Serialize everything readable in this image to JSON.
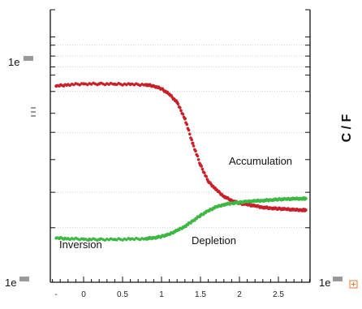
{
  "chart_data": {
    "type": "scatter",
    "title": "",
    "xlabel": "",
    "ylabel": "C / F",
    "x_ticks": [
      "-",
      "0",
      "0.5",
      "1",
      "1.5",
      "2",
      "2.5"
    ],
    "y_tick_labels": {
      "left_top": "1e",
      "left_bottom": "1e",
      "right_bottom": "1e"
    },
    "xlim": [
      -0.4,
      3.0
    ],
    "log_y": true,
    "grid": true,
    "annotations": [
      "Inversion",
      "Depletion",
      "Accumulation"
    ],
    "colors": {
      "red_series": "#c8202a",
      "green_series": "#3cb843"
    },
    "series": [
      {
        "color": "#c8202a",
        "x": [
          -0.35,
          -0.2,
          0.0,
          0.2,
          0.4,
          0.6,
          0.8,
          0.9,
          1.0,
          1.1,
          1.2,
          1.3,
          1.4,
          1.5,
          1.6,
          1.7,
          1.8,
          1.9,
          2.0,
          2.1,
          2.2,
          2.3,
          2.4,
          2.5,
          2.6,
          2.7,
          2.8,
          2.85
        ],
        "y": [
          0.72,
          0.725,
          0.728,
          0.728,
          0.727,
          0.726,
          0.725,
          0.72,
          0.71,
          0.69,
          0.66,
          0.6,
          0.51,
          0.43,
          0.37,
          0.34,
          0.315,
          0.3,
          0.29,
          0.285,
          0.28,
          0.275,
          0.272,
          0.27,
          0.268,
          0.266,
          0.265,
          0.265
        ]
      },
      {
        "color": "#3cb843",
        "x": [
          -0.35,
          -0.2,
          0.0,
          0.2,
          0.4,
          0.6,
          0.8,
          0.9,
          1.0,
          1.1,
          1.2,
          1.3,
          1.4,
          1.5,
          1.6,
          1.7,
          1.8,
          1.9,
          2.0,
          2.1,
          2.2,
          2.3,
          2.4,
          2.5,
          2.6,
          2.7,
          2.8,
          2.85
        ],
        "y": [
          0.162,
          0.16,
          0.158,
          0.157,
          0.157,
          0.158,
          0.16,
          0.163,
          0.168,
          0.176,
          0.19,
          0.205,
          0.225,
          0.245,
          0.262,
          0.276,
          0.285,
          0.29,
          0.293,
          0.296,
          0.298,
          0.3,
          0.302,
          0.304,
          0.305,
          0.306,
          0.307,
          0.307
        ]
      }
    ]
  }
}
